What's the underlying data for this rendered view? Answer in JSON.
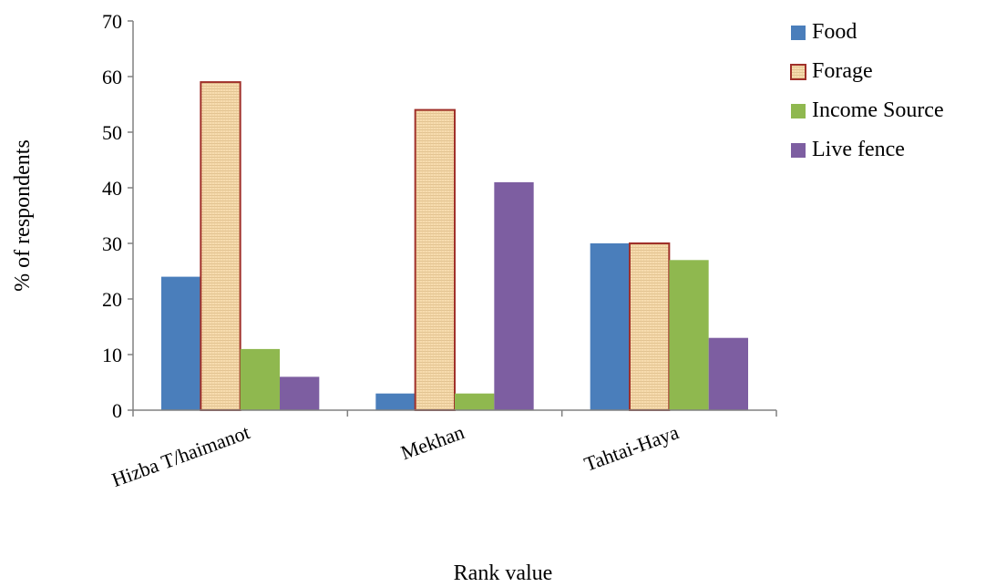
{
  "chart_data": {
    "type": "bar",
    "title": "",
    "xlabel": "Rank value",
    "ylabel": "% of respondents",
    "ylim": [
      0,
      70
    ],
    "yticks": [
      0,
      10,
      20,
      30,
      40,
      50,
      60,
      70
    ],
    "grid": false,
    "legend_position": "top-right",
    "categories": [
      "Hizba T/haimanot",
      "Mekhan",
      "Tahtai-Haya"
    ],
    "series": [
      {
        "name": "Food",
        "values": [
          24,
          3,
          30
        ],
        "color": "#4a7ebb"
      },
      {
        "name": "Forage",
        "values": [
          59,
          54,
          30
        ],
        "color": "#f5d9a8",
        "pattern": "woven",
        "edge_color": "#a0302a"
      },
      {
        "name": "Income Source",
        "values": [
          11,
          3,
          27
        ],
        "color": "#8fb84f"
      },
      {
        "name": "Live fence",
        "values": [
          6,
          41,
          13
        ],
        "color": "#7d5ea1"
      }
    ]
  }
}
